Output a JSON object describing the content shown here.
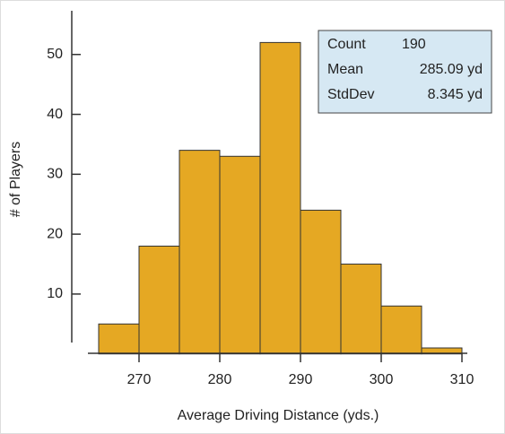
{
  "chart_data": {
    "type": "histogram",
    "xlabel": "Average Driving Distance (yds.)",
    "ylabel": "# of Players",
    "bins": [
      265,
      270,
      275,
      280,
      285,
      290,
      295,
      300,
      305,
      310
    ],
    "values": [
      5,
      18,
      34,
      33,
      52,
      24,
      15,
      8,
      1
    ],
    "color": "#e5a823",
    "xlim": [
      264,
      311
    ],
    "xticks": [
      270,
      280,
      290,
      300,
      310
    ],
    "ylim": [
      0,
      57
    ],
    "yticks": [
      10,
      20,
      30,
      40,
      50
    ],
    "stats": [
      [
        "Count",
        "190"
      ],
      [
        "Mean",
        "285.09 yd"
      ],
      [
        "StdDev",
        "8.345 yd"
      ]
    ]
  }
}
